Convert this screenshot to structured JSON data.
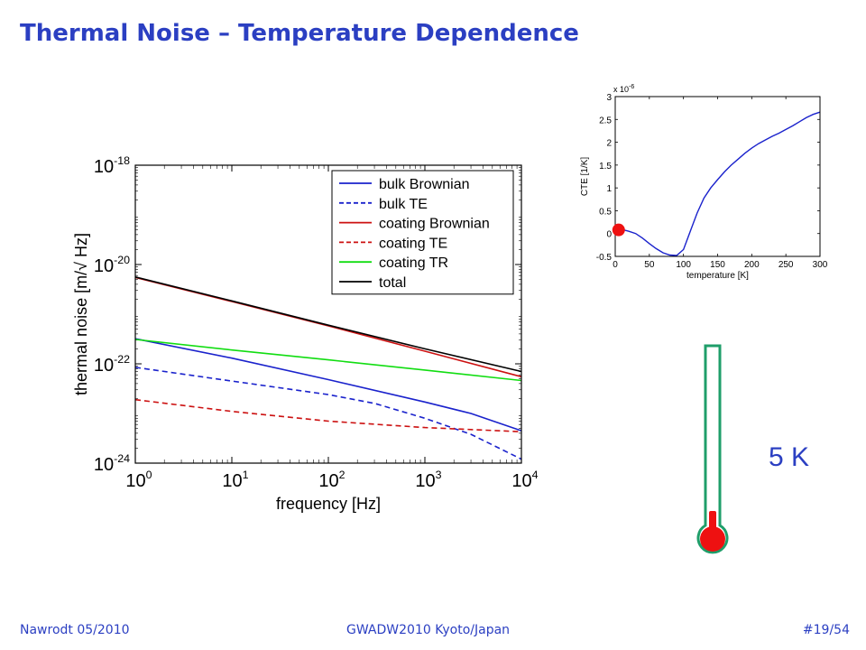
{
  "slide": {
    "title": "Thermal Noise – Temperature Dependence",
    "footer_left": "Nawrodt 05/2010",
    "footer_center": "GWADW2010 Kyoto/Japan",
    "footer_right": "#19/54",
    "temperature_label": "5 K",
    "colors": {
      "title": "#2b3fc2",
      "thermometer_outline": "#1f9e6a",
      "thermometer_fill": "#ee1111"
    }
  },
  "chart_data": [
    {
      "type": "line",
      "title": "",
      "xlabel": "frequency [Hz]",
      "ylabel": "thermal noise [m/√ Hz]",
      "xscale": "log",
      "yscale": "log",
      "xlim": [
        1,
        10000
      ],
      "ylim": [
        1e-24,
        1e-18
      ],
      "x_ticks": [
        {
          "value": 1,
          "base": "10",
          "exp": "0"
        },
        {
          "value": 10,
          "base": "10",
          "exp": "1"
        },
        {
          "value": 100,
          "base": "10",
          "exp": "2"
        },
        {
          "value": 1000,
          "base": "10",
          "exp": "3"
        },
        {
          "value": 10000,
          "base": "10",
          "exp": "4"
        }
      ],
      "y_ticks": [
        {
          "value": 1e-18,
          "base": "10",
          "exp": "-18"
        },
        {
          "value": 1e-20,
          "base": "10",
          "exp": "-20"
        },
        {
          "value": 1e-22,
          "base": "10",
          "exp": "-22"
        },
        {
          "value": 1e-24,
          "base": "10",
          "exp": "-24"
        }
      ],
      "legend_position": "top-right",
      "series": [
        {
          "name": "bulk Brownian",
          "color": "#1a22cc",
          "dash": "solid",
          "x": [
            1,
            10,
            100,
            1000,
            3000,
            10000
          ],
          "y": [
            3.2e-22,
            1.3e-22,
            4.8e-23,
            1.7e-23,
            1e-23,
            4.5e-24
          ]
        },
        {
          "name": "bulk TE",
          "color": "#1a22cc",
          "dash": "dashed",
          "x": [
            1,
            10,
            100,
            300,
            1000,
            3000,
            10000
          ],
          "y": [
            8.5e-23,
            4.5e-23,
            2.4e-23,
            1.6e-23,
            8e-24,
            3.8e-24,
            1.2e-24
          ]
        },
        {
          "name": "coating Brownian",
          "color": "#cc1111",
          "dash": "solid",
          "x": [
            1,
            10,
            100,
            1000,
            10000
          ],
          "y": [
            5.5e-21,
            1.8e-21,
            5.8e-22,
            1.8e-22,
            5.5e-23
          ]
        },
        {
          "name": "coating TE",
          "color": "#cc1111",
          "dash": "dashed",
          "x": [
            1,
            10,
            100,
            1000,
            10000
          ],
          "y": [
            1.9e-23,
            1.1e-23,
            7e-24,
            5.2e-24,
            4.3e-24
          ]
        },
        {
          "name": "coating TR",
          "color": "#11dd11",
          "dash": "solid",
          "x": [
            1,
            10,
            100,
            1000,
            10000
          ],
          "y": [
            3.1e-22,
            1.9e-22,
            1.2e-22,
            7.5e-23,
            4.6e-23
          ]
        },
        {
          "name": "total",
          "color": "#000000",
          "dash": "solid",
          "x": [
            1,
            10,
            100,
            1000,
            10000
          ],
          "y": [
            5.6e-21,
            1.85e-21,
            6e-22,
            2e-22,
            7e-23
          ]
        }
      ]
    },
    {
      "type": "line",
      "title": "",
      "xlabel": "temperature [K]",
      "ylabel": "CTE [1/K]",
      "scale_note": "x 10",
      "scale_exp": "-6",
      "xlim": [
        0,
        300
      ],
      "ylim": [
        -0.5,
        3
      ],
      "x_ticks": [
        "0",
        "50",
        "100",
        "150",
        "200",
        "250",
        "300"
      ],
      "y_ticks": [
        "-0.5",
        "0",
        "0.5",
        "1",
        "1.5",
        "2",
        "2.5",
        "3"
      ],
      "marker": {
        "x": 5,
        "y": 0.08,
        "color": "#ee1111"
      },
      "series": [
        {
          "color": "#1a22cc",
          "x": [
            0,
            10,
            20,
            30,
            40,
            50,
            60,
            70,
            80,
            90,
            100,
            110,
            120,
            130,
            140,
            150,
            160,
            170,
            180,
            190,
            200,
            210,
            220,
            230,
            240,
            250,
            260,
            270,
            280,
            290,
            300
          ],
          "y": [
            0.0,
            0.09,
            0.05,
            0.0,
            -0.1,
            -0.22,
            -0.33,
            -0.42,
            -0.47,
            -0.48,
            -0.35,
            0.05,
            0.45,
            0.78,
            1.0,
            1.18,
            1.35,
            1.5,
            1.63,
            1.76,
            1.87,
            1.97,
            2.05,
            2.13,
            2.2,
            2.28,
            2.36,
            2.45,
            2.54,
            2.61,
            2.66
          ]
        }
      ]
    }
  ]
}
